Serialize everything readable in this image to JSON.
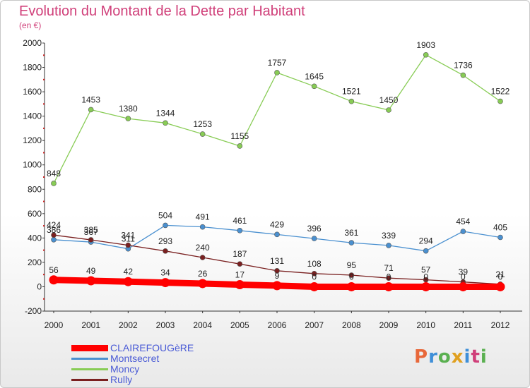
{
  "header": {
    "title": "Evolution du Montant de la Dette par Habitant",
    "subtitle": "(en €)"
  },
  "logo": {
    "text": "Proxiti",
    "colors": [
      "#e8683a",
      "#3f8fd8",
      "#5ab050",
      "#e0a020",
      "#3f8fd8",
      "#d0407a",
      "#5ab050"
    ]
  },
  "chart_data": {
    "type": "line",
    "title": "Evolution du Montant de la Dette par Habitant",
    "subtitle": "(en €)",
    "xlabel": "",
    "ylabel": "",
    "x": [
      "2000",
      "2001",
      "2002",
      "2003",
      "2004",
      "2005",
      "2006",
      "2007",
      "2008",
      "2009",
      "2010",
      "2011",
      "2012"
    ],
    "ylim": [
      -200,
      2000
    ],
    "yticks": [
      "-200",
      "0",
      "200",
      "400",
      "600",
      "800",
      "1000",
      "1200",
      "1400",
      "1600",
      "1800",
      "2000"
    ],
    "grid": false,
    "legend_position": "bottom-left",
    "series": [
      {
        "name": "CLAIREFOUGèRE",
        "color": "#ff0000",
        "values": [
          56,
          49,
          42,
          34,
          26,
          17,
          9,
          0,
          0,
          0,
          0,
          0,
          0
        ],
        "labels": [
          "56",
          "49",
          "42",
          "34",
          "26",
          "17",
          "9",
          "0",
          "0",
          "0",
          "0",
          "0",
          "0"
        ]
      },
      {
        "name": "Montsecret",
        "color": "#4a90d0",
        "values": [
          386,
          367,
          311,
          504,
          491,
          461,
          429,
          396,
          361,
          339,
          294,
          454,
          405
        ],
        "labels": [
          "386",
          "367",
          "311",
          "504",
          "491",
          "461",
          "429",
          "396",
          "361",
          "339",
          "294",
          "454",
          "405"
        ]
      },
      {
        "name": "Moncy",
        "color": "#88cc55",
        "values": [
          848,
          1453,
          1380,
          1344,
          1253,
          1155,
          1757,
          1645,
          1521,
          1450,
          1903,
          1736,
          1522
        ],
        "labels": [
          "848",
          "1453",
          "1380",
          "1344",
          "1253",
          "1155",
          "1757",
          "1645",
          "1521",
          "1450",
          "1903",
          "1736",
          "1522"
        ]
      },
      {
        "name": "Rully",
        "color": "#7a2020",
        "values": [
          424,
          385,
          341,
          293,
          240,
          187,
          131,
          108,
          95,
          71,
          57,
          39,
          21
        ],
        "labels": [
          "424",
          "385",
          "341",
          "293",
          "240",
          "187",
          "131",
          "108",
          "95",
          "71",
          "57",
          "39",
          "21"
        ]
      }
    ]
  }
}
